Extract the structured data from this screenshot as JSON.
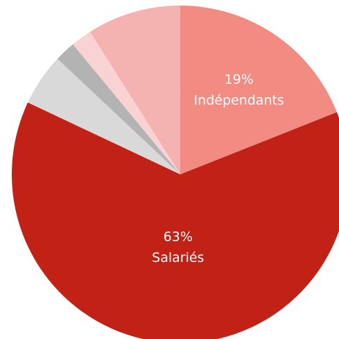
{
  "chart_data": {
    "type": "pie",
    "start": "top",
    "direction": "clockwise",
    "legend": "none",
    "slices": [
      {
        "label": "Indépendants",
        "value": 19,
        "value_label": "19%",
        "color": "#f28b82"
      },
      {
        "label": "Salariés",
        "value": 63,
        "value_label": "63%",
        "color": "#c22116"
      },
      {
        "label": "",
        "value": 5,
        "value_label": "",
        "color": "#d9d9d9"
      },
      {
        "label": "",
        "value": 2,
        "value_label": "",
        "color": "#b3b3b3"
      },
      {
        "label": "",
        "value": 2,
        "value_label": "",
        "color": "#f9d3d3"
      },
      {
        "label": "",
        "value": 9,
        "value_label": "",
        "color": "#f4b3b0"
      }
    ]
  }
}
